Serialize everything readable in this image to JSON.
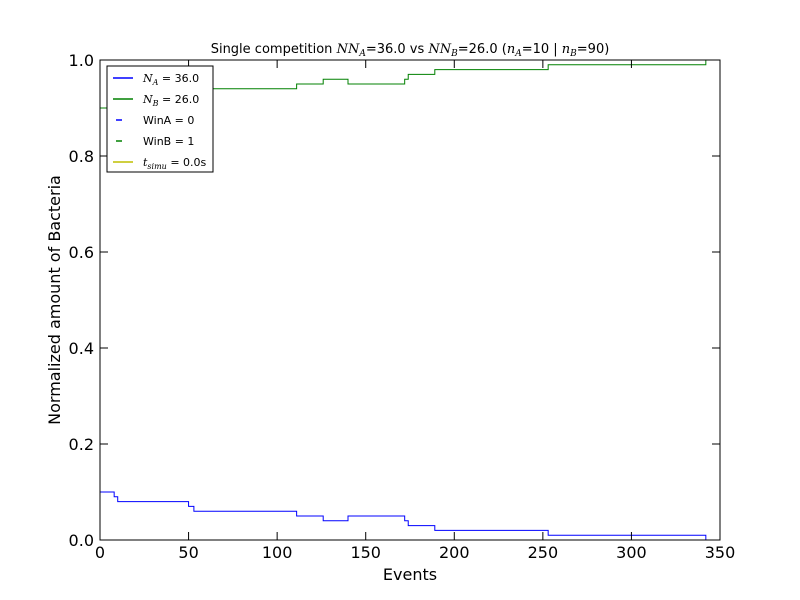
{
  "chart_data": {
    "type": "line",
    "title": {
      "prefix": "Single competition ",
      "nn_a_math": "NN",
      "nn_a_sub": "A",
      "nn_a_value": "=36.0 vs ",
      "nn_b_math": "NN",
      "nn_b_sub": "B",
      "nn_b_value": "=26.0 (",
      "n_a_math": "n",
      "n_a_sub": "A",
      "n_a_value": "=10 | ",
      "n_b_math": "n",
      "n_b_sub": "B",
      "n_b_value": "=90)"
    },
    "xlabel": "Events",
    "ylabel": "Normalized amount of Bacteria",
    "xlim": [
      0,
      350
    ],
    "ylim": [
      0.0,
      1.0
    ],
    "xticks": [
      0,
      50,
      100,
      150,
      200,
      250,
      300,
      350
    ],
    "xtick_labels": [
      "0",
      "50",
      "100",
      "150",
      "200",
      "250",
      "300",
      "350"
    ],
    "yticks": [
      0.0,
      0.2,
      0.4,
      0.6,
      0.8,
      1.0
    ],
    "ytick_labels": [
      "0.0",
      "0.2",
      "0.4",
      "0.6",
      "0.8",
      "1.0"
    ],
    "grid": false,
    "legend_position": "top-left",
    "series": [
      {
        "name": "N_A = 36.0",
        "color": "#0000ff",
        "step": true,
        "x": [
          0,
          7,
          8,
          10,
          48,
          50,
          53,
          110,
          111,
          125,
          126,
          138,
          140,
          171,
          172,
          174,
          188,
          189,
          252,
          253,
          341,
          342,
          343
        ],
        "y": [
          0.1,
          0.1,
          0.09,
          0.08,
          0.08,
          0.07,
          0.06,
          0.06,
          0.05,
          0.05,
          0.04,
          0.04,
          0.05,
          0.05,
          0.04,
          0.03,
          0.03,
          0.02,
          0.02,
          0.01,
          0.01,
          0.0,
          0.0
        ]
      },
      {
        "name": "N_B = 26.0",
        "color": "#008000",
        "step": true,
        "x": [
          0,
          7,
          8,
          10,
          48,
          50,
          53,
          110,
          111,
          125,
          126,
          138,
          140,
          171,
          172,
          174,
          188,
          189,
          252,
          253,
          341,
          342,
          343
        ],
        "y": [
          0.9,
          0.9,
          0.91,
          0.92,
          0.92,
          0.93,
          0.94,
          0.94,
          0.95,
          0.95,
          0.96,
          0.96,
          0.95,
          0.95,
          0.96,
          0.97,
          0.97,
          0.98,
          0.98,
          0.99,
          0.99,
          1.0,
          1.0
        ]
      }
    ],
    "legend": [
      {
        "math": "N",
        "sub": "A",
        "text": " = 36.0",
        "color": "#0000ff",
        "style": "solid"
      },
      {
        "math": "N",
        "sub": "B",
        "text": " = 26.0",
        "color": "#008000",
        "style": "solid"
      },
      {
        "math": "",
        "sub": "",
        "text": "WinA = 0",
        "color": "#0000ff",
        "style": "dash"
      },
      {
        "math": "",
        "sub": "",
        "text": "WinB = 1",
        "color": "#008000",
        "style": "dash"
      },
      {
        "math": "t",
        "sub": "simu",
        "text": " = 0.0s",
        "color": "#bfbf00",
        "style": "solid"
      }
    ]
  }
}
